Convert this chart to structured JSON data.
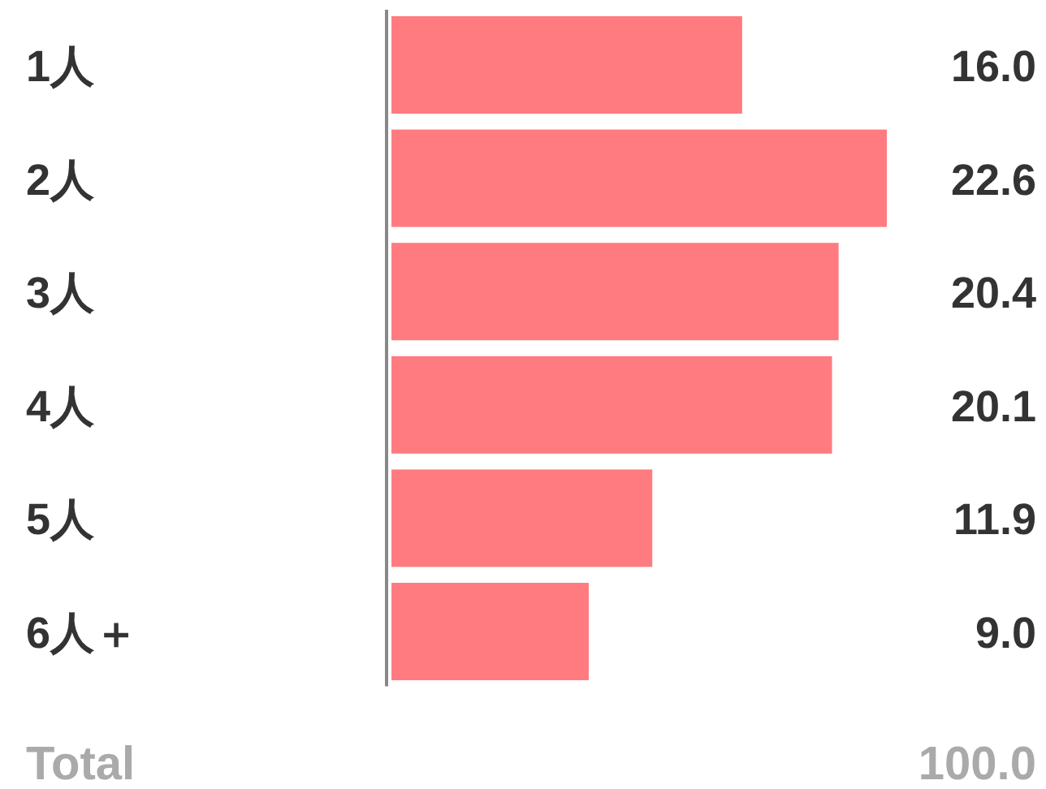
{
  "chart_data": {
    "type": "bar",
    "orientation": "horizontal",
    "categories": [
      "1人",
      "2人",
      "3人",
      "4人",
      "5人",
      "6人＋"
    ],
    "values": [
      16.0,
      22.6,
      20.4,
      20.1,
      11.9,
      9.0
    ],
    "value_labels": [
      "16.0",
      "22.6",
      "20.4",
      "20.1",
      "11.9",
      "9.0"
    ],
    "color": "#ff7b7f",
    "annotations": [
      "Total",
      "100.0"
    ]
  }
}
